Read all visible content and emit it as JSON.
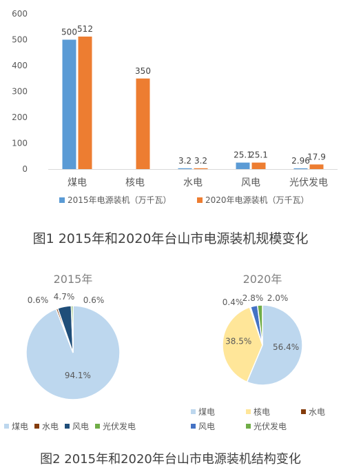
{
  "colors": {
    "series_2015": "#5b9bd5",
    "series_2020": "#ed7d31",
    "coal": "#bdd7ee",
    "nuclear": "#ffe699",
    "hydro": "#843c0c",
    "wind": "#1f4e79",
    "wind_2020": "#4472c4",
    "solar": "#70ad47",
    "axis_text": "#595959",
    "grid": "#d9d9d9"
  },
  "chart_data": [
    {
      "type": "bar",
      "categories": [
        "煤电",
        "核电",
        "水电",
        "风电",
        "光伏发电"
      ],
      "series": [
        {
          "name": "2015年电源装机（万千瓦）",
          "values": [
            500,
            null,
            3.2,
            25.1,
            2.96
          ],
          "labels": [
            "500",
            "",
            "3.2",
            "25.1",
            "2.96"
          ]
        },
        {
          "name": "2020年电源装机（万千瓦）",
          "values": [
            512,
            350,
            3.2,
            25.1,
            17.9
          ],
          "labels": [
            "512",
            "350",
            "3.2",
            "25.1",
            "17.9"
          ]
        }
      ],
      "yticks": [
        "0",
        "100",
        "200",
        "300",
        "400",
        "500",
        "600"
      ],
      "ylim": [
        0,
        600
      ],
      "grid": false,
      "legend_position": "bottom"
    },
    {
      "type": "pie",
      "title": "2015年",
      "slices": [
        {
          "name": "煤电",
          "value": 94.1,
          "label": "94.1%"
        },
        {
          "name": "水电",
          "value": 0.6,
          "label": "0.6%"
        },
        {
          "name": "风电",
          "value": 4.7,
          "label": "4.7%"
        },
        {
          "name": "光伏发电",
          "value": 0.6,
          "label": "0.6%"
        }
      ],
      "legend_position": "bottom"
    },
    {
      "type": "pie",
      "title": "2020年",
      "slices": [
        {
          "name": "煤电",
          "value": 56.4,
          "label": "56.4%"
        },
        {
          "name": "核电",
          "value": 38.5,
          "label": "38.5%"
        },
        {
          "name": "水电",
          "value": 0.4,
          "label": "0.4%"
        },
        {
          "name": "风电",
          "value": 2.8,
          "label": "2.8%"
        },
        {
          "name": "光伏发电",
          "value": 2.0,
          "label": "2.0%"
        }
      ],
      "legend_position": "bottom"
    }
  ],
  "captions": {
    "figure1": "图1 2015年和2020年台山市电源装机规模变化",
    "figure2": "图2 2015年和2020年台山市电源装机结构变化"
  }
}
